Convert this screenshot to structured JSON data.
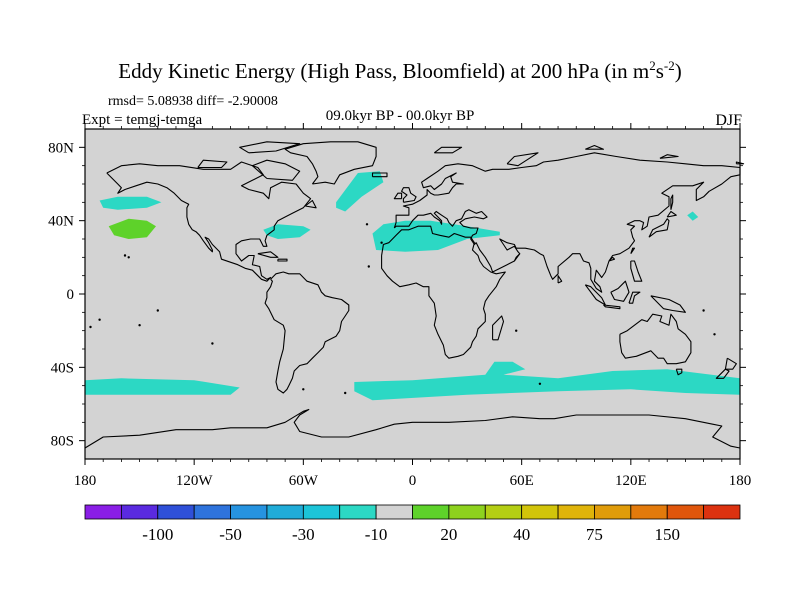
{
  "title_main": "Eddy Kinetic Energy (High Pass, Bloomfield) at 200 hPa (in m",
  "title_sup1": "2",
  "title_mid": "s",
  "title_sup2": "-2",
  "title_end": ")",
  "stats": "rmsd= 5.08938  diff= -2.90008",
  "expt": "Expt = temgj-temga",
  "subtitle": "09.0kyr BP - 00.0kyr BP",
  "season": "DJF",
  "chart_data": {
    "type": "heatmap",
    "title": "Eddy Kinetic Energy (High Pass, Bloomfield) at 200 hPa (in m^2s^-2)",
    "xlim": [
      -180,
      180
    ],
    "ylim": [
      -90,
      90
    ],
    "x_ticks": [
      {
        "value": -180,
        "label": "180"
      },
      {
        "value": -120,
        "label": "120W"
      },
      {
        "value": -60,
        "label": "60W"
      },
      {
        "value": 0,
        "label": "0"
      },
      {
        "value": 60,
        "label": "60E"
      },
      {
        "value": 120,
        "label": "120E"
      },
      {
        "value": 180,
        "label": "180"
      }
    ],
    "y_ticks": [
      {
        "value": 80,
        "label": "80N"
      },
      {
        "value": 40,
        "label": "40N"
      },
      {
        "value": 0,
        "label": "0"
      },
      {
        "value": -40,
        "label": "40S"
      },
      {
        "value": -80,
        "label": "80S"
      }
    ],
    "background_color": "#d3d3d3",
    "colorbar": {
      "colors": [
        "#8a1ee6",
        "#5a2ae0",
        "#2f50d8",
        "#2e73dc",
        "#2693e0",
        "#20acd8",
        "#1cc4d8",
        "#2cd8c4",
        "#d3d3d3",
        "#5ed22a",
        "#8ed21e",
        "#b4ce14",
        "#d2c40a",
        "#e0b40a",
        "#e09c0a",
        "#e27a0c",
        "#e0560c",
        "#dc3210"
      ],
      "labels": [
        "-100",
        "-50",
        "-30",
        "-10",
        "20",
        "40",
        "75",
        "150"
      ],
      "label_boundaries": [
        2,
        4,
        6,
        8,
        10,
        12,
        14,
        16
      ]
    },
    "anomaly_regions": [
      {
        "name": "north-pacific-west-negative",
        "color": "#2cd8c4",
        "polygon": [
          [
            -172,
            51
          ],
          [
            -162,
            53
          ],
          [
            -146,
            53
          ],
          [
            -138,
            50
          ],
          [
            -146,
            47
          ],
          [
            -162,
            46
          ],
          [
            -170,
            47
          ]
        ]
      },
      {
        "name": "north-pacific-positive",
        "color": "#5ed22a",
        "polygon": [
          [
            -167,
            37
          ],
          [
            -156,
            41
          ],
          [
            -146,
            40
          ],
          [
            -141,
            37
          ],
          [
            -146,
            31
          ],
          [
            -156,
            30
          ],
          [
            -164,
            32
          ]
        ]
      },
      {
        "name": "north-atlantic-north-negative",
        "color": "#2cd8c4",
        "polygon": [
          [
            -42,
            50
          ],
          [
            -30,
            66
          ],
          [
            -18,
            67
          ],
          [
            -16,
            61
          ],
          [
            -28,
            53
          ],
          [
            -37,
            45
          ],
          [
            -42,
            47
          ]
        ]
      },
      {
        "name": "north-atlantic-west-negative",
        "color": "#2cd8c4",
        "polygon": [
          [
            -82,
            35
          ],
          [
            -74,
            38
          ],
          [
            -60,
            37
          ],
          [
            -56,
            35
          ],
          [
            -62,
            31
          ],
          [
            -74,
            30
          ],
          [
            -80,
            32
          ]
        ]
      },
      {
        "name": "north-africa-mediterranean-negative",
        "color": "#2cd8c4",
        "polygon": [
          [
            -22,
            33
          ],
          [
            -16,
            38
          ],
          [
            -4,
            40
          ],
          [
            10,
            40
          ],
          [
            30,
            37
          ],
          [
            48,
            34
          ],
          [
            48,
            32
          ],
          [
            30,
            30
          ],
          [
            14,
            24
          ],
          [
            -4,
            23
          ],
          [
            -20,
            24
          ]
        ]
      },
      {
        "name": "japan-east-negative",
        "color": "#2cd8c4",
        "polygon": [
          [
            151,
            43
          ],
          [
            154,
            45
          ],
          [
            157,
            42
          ],
          [
            154,
            40
          ]
        ]
      },
      {
        "name": "southeast-pacific-negative",
        "color": "#2cd8c4",
        "polygon": [
          [
            -180,
            -47
          ],
          [
            -160,
            -46
          ],
          [
            -120,
            -47
          ],
          [
            -95,
            -51
          ],
          [
            -100,
            -55
          ],
          [
            -140,
            -55
          ],
          [
            -180,
            -55
          ]
        ]
      },
      {
        "name": "southern-ocean-negative",
        "color": "#2cd8c4",
        "polygon": [
          [
            -32,
            -48
          ],
          [
            0,
            -47
          ],
          [
            40,
            -44
          ],
          [
            45,
            -37
          ],
          [
            55,
            -37
          ],
          [
            62,
            -41
          ],
          [
            50,
            -44
          ],
          [
            80,
            -46
          ],
          [
            110,
            -42
          ],
          [
            140,
            -41
          ],
          [
            180,
            -46
          ],
          [
            180,
            -55
          ],
          [
            150,
            -54
          ],
          [
            120,
            -52
          ],
          [
            80,
            -53
          ],
          [
            30,
            -55
          ],
          [
            -22,
            -58
          ],
          [
            -32,
            -53
          ]
        ]
      }
    ]
  }
}
